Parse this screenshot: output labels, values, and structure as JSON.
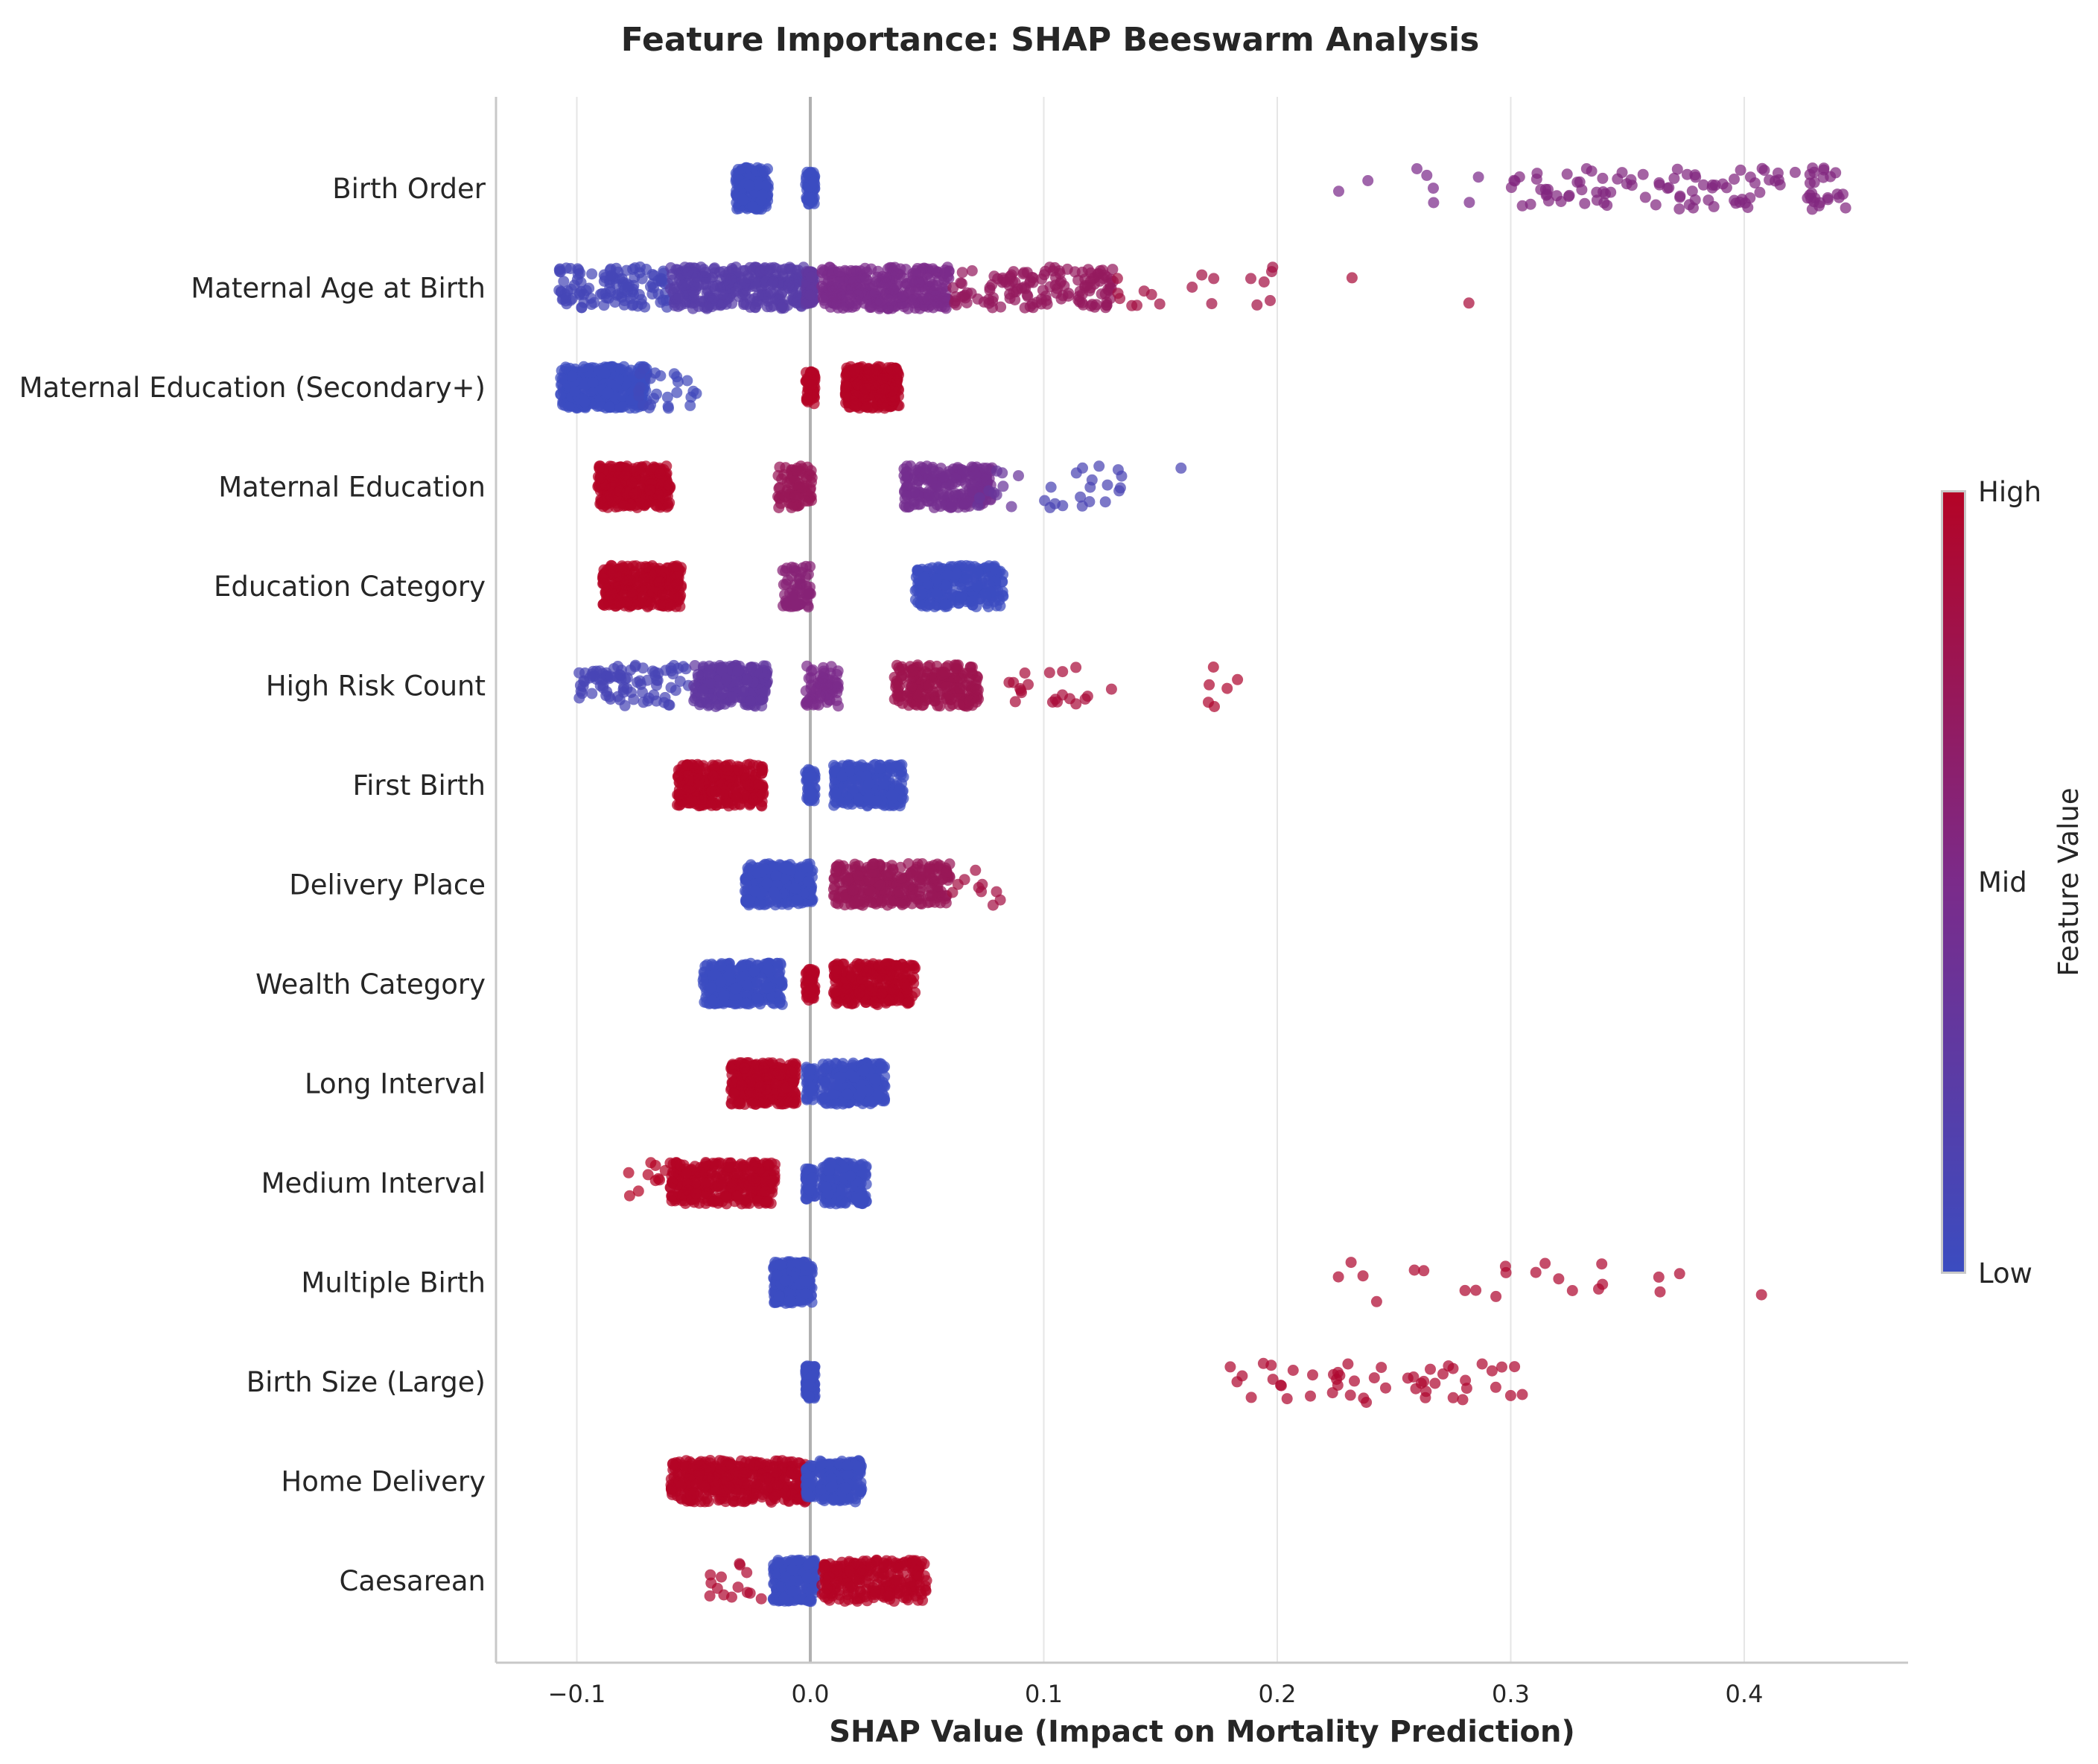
{
  "chart_data": {
    "type": "scatter",
    "subtype": "shap-beeswarm",
    "title": "Feature Importance: SHAP Beeswarm Analysis",
    "xlabel": "SHAP Value (Impact on Mortality Prediction)",
    "ylabel": "",
    "xlim": [
      -0.135,
      0.47
    ],
    "xticks": [
      -0.1,
      0.0,
      0.1,
      0.2,
      0.3,
      0.4
    ],
    "xtick_labels": [
      "−0.1",
      "0.0",
      "0.1",
      "0.2",
      "0.3",
      "0.4"
    ],
    "grid": "vertical",
    "zero_line": 0.0,
    "colorbar": {
      "label": "Feature Value",
      "ticks": [
        "Low",
        "Mid",
        "High"
      ],
      "low_color": "#3b4cc0",
      "mid_color": "#7b2b8a",
      "high_color": "#b40426"
    },
    "features": [
      {
        "name": "Birth Order",
        "clusters": [
          {
            "min": -0.032,
            "max": -0.018,
            "color": 0.0,
            "n": 200
          },
          {
            "min": -0.002,
            "max": 0.002,
            "color": 0.0,
            "n": 60
          },
          {
            "min": 0.21,
            "max": 0.3,
            "color": 0.5,
            "n": 8
          },
          {
            "min": 0.3,
            "max": 0.445,
            "color": 0.55,
            "n": 110
          }
        ]
      },
      {
        "name": "Maternal Age at Birth",
        "clusters": [
          {
            "min": -0.108,
            "max": -0.06,
            "color": 0.08,
            "n": 120
          },
          {
            "min": -0.06,
            "max": -0.002,
            "color": 0.22,
            "n": 320
          },
          {
            "min": -0.002,
            "max": 0.002,
            "color": 0.3,
            "n": 60
          },
          {
            "min": 0.005,
            "max": 0.06,
            "color": 0.5,
            "n": 320
          },
          {
            "min": 0.06,
            "max": 0.13,
            "color": 0.72,
            "n": 140
          },
          {
            "min": 0.13,
            "max": 0.2,
            "color": 0.85,
            "n": 18
          },
          {
            "min": 0.23,
            "max": 0.285,
            "color": 0.9,
            "n": 2
          }
        ]
      },
      {
        "name": "Maternal Education (Secondary+)",
        "clusters": [
          {
            "min": -0.107,
            "max": -0.07,
            "color": 0.0,
            "n": 380
          },
          {
            "min": -0.075,
            "max": -0.048,
            "color": 0.05,
            "n": 25
          },
          {
            "min": -0.002,
            "max": 0.002,
            "color": 1.0,
            "n": 60
          },
          {
            "min": 0.015,
            "max": 0.038,
            "color": 1.0,
            "n": 300
          }
        ]
      },
      {
        "name": "Maternal Education",
        "clusters": [
          {
            "min": -0.091,
            "max": -0.06,
            "color": 1.0,
            "n": 300
          },
          {
            "min": -0.014,
            "max": 0.001,
            "color": 0.75,
            "n": 80
          },
          {
            "min": 0.04,
            "max": 0.078,
            "color": 0.45,
            "n": 220
          },
          {
            "min": 0.07,
            "max": 0.09,
            "color": 0.35,
            "n": 10
          },
          {
            "min": 0.1,
            "max": 0.16,
            "color": 0.12,
            "n": 20
          }
        ]
      },
      {
        "name": "Education Category",
        "clusters": [
          {
            "min": -0.089,
            "max": -0.055,
            "color": 1.0,
            "n": 300
          },
          {
            "min": -0.012,
            "max": 0.001,
            "color": 0.6,
            "n": 60
          },
          {
            "min": 0.045,
            "max": 0.083,
            "color": 0.0,
            "n": 260
          }
        ]
      },
      {
        "name": "High Risk Count",
        "clusters": [
          {
            "min": -0.1,
            "max": -0.052,
            "color": 0.1,
            "n": 90
          },
          {
            "min": -0.05,
            "max": -0.018,
            "color": 0.3,
            "n": 220
          },
          {
            "min": -0.002,
            "max": 0.012,
            "color": 0.5,
            "n": 70
          },
          {
            "min": 0.036,
            "max": 0.072,
            "color": 0.8,
            "n": 200
          },
          {
            "min": 0.085,
            "max": 0.13,
            "color": 0.9,
            "n": 20
          },
          {
            "min": 0.17,
            "max": 0.187,
            "color": 0.95,
            "n": 6
          }
        ]
      },
      {
        "name": "First Birth",
        "clusters": [
          {
            "min": -0.057,
            "max": -0.02,
            "color": 1.0,
            "n": 300
          },
          {
            "min": -0.002,
            "max": 0.002,
            "color": 0.0,
            "n": 50
          },
          {
            "min": 0.01,
            "max": 0.04,
            "color": 0.0,
            "n": 260
          }
        ]
      },
      {
        "name": "Delivery Place",
        "clusters": [
          {
            "min": -0.028,
            "max": 0.001,
            "color": 0.0,
            "n": 320
          },
          {
            "min": 0.01,
            "max": 0.06,
            "color": 0.75,
            "n": 280
          },
          {
            "min": 0.06,
            "max": 0.082,
            "color": 0.85,
            "n": 10
          }
        ]
      },
      {
        "name": "Wealth Category",
        "clusters": [
          {
            "min": -0.046,
            "max": -0.012,
            "color": 0.0,
            "n": 320
          },
          {
            "min": -0.002,
            "max": 0.002,
            "color": 1.0,
            "n": 60
          },
          {
            "min": 0.01,
            "max": 0.045,
            "color": 1.0,
            "n": 280
          }
        ]
      },
      {
        "name": "Long Interval",
        "clusters": [
          {
            "min": -0.034,
            "max": -0.006,
            "color": 1.0,
            "n": 300
          },
          {
            "min": -0.002,
            "max": 0.002,
            "color": 0.0,
            "n": 50
          },
          {
            "min": 0.005,
            "max": 0.032,
            "color": 0.0,
            "n": 260
          }
        ]
      },
      {
        "name": "Medium Interval",
        "clusters": [
          {
            "min": -0.078,
            "max": -0.062,
            "color": 1.0,
            "n": 10
          },
          {
            "min": -0.06,
            "max": -0.015,
            "color": 1.0,
            "n": 320
          },
          {
            "min": -0.002,
            "max": 0.002,
            "color": 0.0,
            "n": 50
          },
          {
            "min": 0.005,
            "max": 0.024,
            "color": 0.0,
            "n": 200
          }
        ]
      },
      {
        "name": "Multiple Birth",
        "clusters": [
          {
            "min": -0.016,
            "max": 0.001,
            "color": 0.0,
            "n": 260
          },
          {
            "min": 0.2,
            "max": 0.41,
            "color": 0.95,
            "n": 22
          }
        ]
      },
      {
        "name": "Birth Size (Large)",
        "clusters": [
          {
            "min": -0.002,
            "max": 0.002,
            "color": 0.0,
            "n": 120
          },
          {
            "min": 0.172,
            "max": 0.305,
            "color": 0.95,
            "n": 50
          }
        ]
      },
      {
        "name": "Home Delivery",
        "clusters": [
          {
            "min": -0.06,
            "max": -0.002,
            "color": 1.0,
            "n": 420
          },
          {
            "min": -0.002,
            "max": 0.002,
            "color": 0.0,
            "n": 50
          },
          {
            "min": 0.004,
            "max": 0.022,
            "color": 0.0,
            "n": 200
          }
        ]
      },
      {
        "name": "Caesarean",
        "clusters": [
          {
            "min": -0.047,
            "max": -0.02,
            "color": 0.95,
            "n": 14
          },
          {
            "min": -0.016,
            "max": 0.003,
            "color": 0.0,
            "n": 220
          },
          {
            "min": 0.005,
            "max": 0.05,
            "color": 1.0,
            "n": 260
          }
        ]
      }
    ]
  }
}
